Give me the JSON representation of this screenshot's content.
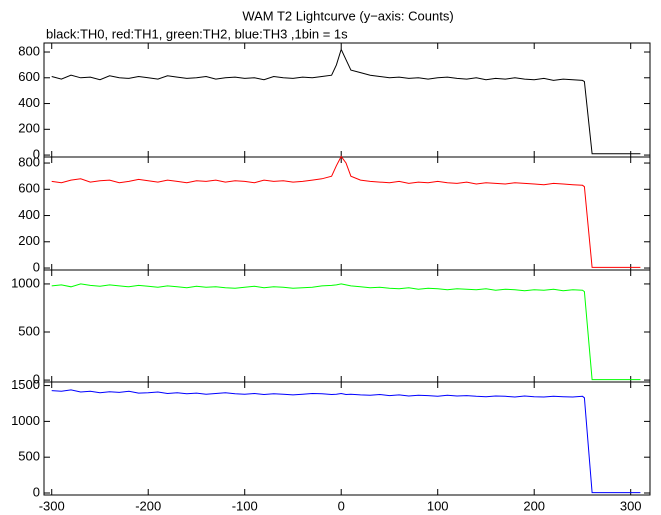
{
  "title": "WAM T2 Lightcurve (y−axis: Counts)",
  "subtitle": "black:TH0, red:TH1, green:TH2, blue:TH3 ,1bin = 1s",
  "chart_data": [
    {
      "type": "line",
      "color": "#000000",
      "x": [
        -300,
        -290,
        -280,
        -270,
        -260,
        -250,
        -240,
        -230,
        -220,
        -210,
        -200,
        -190,
        -180,
        -170,
        -160,
        -150,
        -140,
        -130,
        -120,
        -110,
        -100,
        -90,
        -80,
        -70,
        -60,
        -50,
        -40,
        -30,
        -20,
        -10,
        -5,
        0,
        5,
        10,
        20,
        30,
        40,
        50,
        60,
        70,
        80,
        90,
        100,
        110,
        120,
        130,
        140,
        150,
        160,
        170,
        180,
        190,
        200,
        210,
        220,
        230,
        240,
        250,
        252,
        260,
        270,
        280,
        290,
        300,
        310
      ],
      "values": [
        610,
        590,
        620,
        600,
        605,
        585,
        615,
        600,
        595,
        610,
        600,
        590,
        615,
        605,
        595,
        600,
        610,
        590,
        600,
        605,
        595,
        600,
        585,
        610,
        600,
        595,
        605,
        600,
        610,
        620,
        700,
        820,
        740,
        660,
        640,
        620,
        610,
        600,
        605,
        595,
        600,
        590,
        600,
        605,
        595,
        590,
        600,
        585,
        595,
        590,
        600,
        590,
        585,
        595,
        580,
        590,
        585,
        580,
        570,
        10,
        10,
        10,
        10,
        10,
        10
      ],
      "xlim": [
        -308,
        320
      ],
      "ylim": [
        -15,
        870
      ],
      "yticks": [
        0,
        200,
        400,
        600,
        800
      ]
    },
    {
      "type": "line",
      "color": "#ff0000",
      "x": [
        -300,
        -290,
        -280,
        -270,
        -260,
        -250,
        -240,
        -230,
        -220,
        -210,
        -200,
        -190,
        -180,
        -170,
        -160,
        -150,
        -140,
        -130,
        -120,
        -110,
        -100,
        -90,
        -80,
        -70,
        -60,
        -50,
        -40,
        -30,
        -20,
        -10,
        -5,
        0,
        5,
        10,
        20,
        30,
        40,
        50,
        60,
        70,
        80,
        90,
        100,
        110,
        120,
        130,
        140,
        150,
        160,
        170,
        180,
        190,
        200,
        210,
        220,
        230,
        240,
        250,
        252,
        260,
        270,
        280,
        290,
        300,
        310
      ],
      "values": [
        660,
        650,
        670,
        680,
        655,
        665,
        670,
        650,
        660,
        675,
        665,
        655,
        670,
        660,
        650,
        665,
        660,
        670,
        655,
        665,
        660,
        650,
        670,
        660,
        665,
        655,
        660,
        670,
        680,
        700,
        780,
        850,
        800,
        700,
        670,
        660,
        655,
        650,
        660,
        645,
        655,
        650,
        660,
        650,
        645,
        655,
        640,
        650,
        645,
        640,
        650,
        645,
        640,
        635,
        645,
        640,
        635,
        630,
        620,
        5,
        5,
        5,
        5,
        5,
        5
      ],
      "xlim": [
        -308,
        320
      ],
      "ylim": [
        -15,
        846
      ],
      "yticks": [
        0,
        200,
        400,
        600,
        800
      ]
    },
    {
      "type": "line",
      "color": "#00ff00",
      "x": [
        -300,
        -290,
        -280,
        -270,
        -260,
        -250,
        -240,
        -230,
        -220,
        -210,
        -200,
        -190,
        -180,
        -170,
        -160,
        -150,
        -140,
        -130,
        -120,
        -110,
        -100,
        -90,
        -80,
        -70,
        -60,
        -50,
        -40,
        -30,
        -20,
        -10,
        -5,
        0,
        5,
        10,
        20,
        30,
        40,
        50,
        60,
        70,
        80,
        90,
        100,
        110,
        120,
        130,
        140,
        150,
        160,
        170,
        180,
        190,
        200,
        210,
        220,
        230,
        240,
        250,
        252,
        260,
        270,
        280,
        290,
        300,
        310
      ],
      "values": [
        980,
        990,
        970,
        1000,
        985,
        975,
        990,
        980,
        970,
        985,
        975,
        965,
        980,
        970,
        960,
        975,
        965,
        970,
        960,
        955,
        965,
        975,
        960,
        970,
        965,
        955,
        960,
        965,
        980,
        985,
        990,
        1000,
        990,
        980,
        970,
        960,
        965,
        955,
        950,
        960,
        945,
        955,
        950,
        940,
        950,
        945,
        940,
        950,
        935,
        945,
        940,
        930,
        940,
        935,
        945,
        930,
        940,
        935,
        920,
        5,
        5,
        5,
        5,
        5,
        5
      ],
      "xlim": [
        -308,
        320
      ],
      "ylim": [
        -20,
        1145
      ],
      "yticks": [
        0,
        500,
        1000
      ]
    },
    {
      "type": "line",
      "color": "#0000ff",
      "x": [
        -300,
        -290,
        -280,
        -270,
        -260,
        -250,
        -240,
        -230,
        -220,
        -210,
        -200,
        -190,
        -180,
        -170,
        -160,
        -150,
        -140,
        -130,
        -120,
        -110,
        -100,
        -90,
        -80,
        -70,
        -60,
        -50,
        -40,
        -30,
        -20,
        -10,
        -5,
        0,
        5,
        10,
        20,
        30,
        40,
        50,
        60,
        70,
        80,
        90,
        100,
        110,
        120,
        130,
        140,
        150,
        160,
        170,
        180,
        190,
        200,
        210,
        220,
        230,
        240,
        250,
        252,
        260,
        270,
        280,
        290,
        300,
        310
      ],
      "values": [
        1430,
        1420,
        1440,
        1410,
        1420,
        1400,
        1415,
        1405,
        1420,
        1395,
        1400,
        1410,
        1390,
        1400,
        1385,
        1395,
        1380,
        1390,
        1400,
        1385,
        1380,
        1390,
        1375,
        1385,
        1380,
        1370,
        1380,
        1390,
        1385,
        1375,
        1380,
        1390,
        1375,
        1380,
        1370,
        1365,
        1375,
        1360,
        1370,
        1355,
        1365,
        1360,
        1350,
        1365,
        1355,
        1360,
        1350,
        1345,
        1355,
        1350,
        1340,
        1355,
        1345,
        1340,
        1350,
        1345,
        1340,
        1350,
        1330,
        5,
        5,
        5,
        5,
        5,
        5
      ],
      "xlim": [
        -308,
        320
      ],
      "ylim": [
        -28,
        1550
      ],
      "yticks": [
        0,
        500,
        1000,
        1500
      ],
      "xticks": [
        -300,
        -200,
        -100,
        0,
        100,
        200,
        300
      ]
    }
  ]
}
